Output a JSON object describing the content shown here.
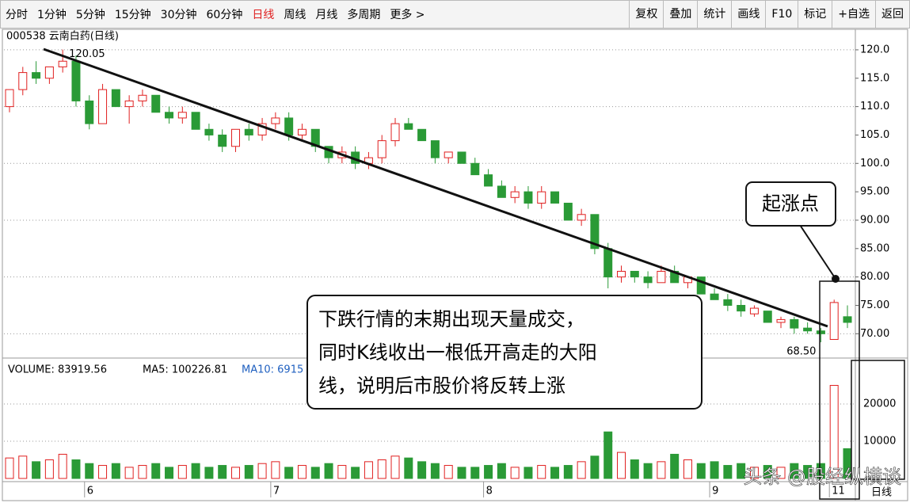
{
  "toolbar": {
    "periods": [
      "分时",
      "1分钟",
      "5分钟",
      "15分钟",
      "30分钟",
      "60分钟",
      "日线",
      "周线",
      "月线",
      "多周期",
      "更多 >"
    ],
    "tools": [
      "复权",
      "叠加",
      "统计",
      "画线",
      "F10",
      "标记",
      "+自选",
      "返回"
    ]
  },
  "chart_data": {
    "type": "candlestick",
    "title": "000538 云南白药(日线)",
    "categories": [
      null,
      null,
      null,
      null,
      null,
      null,
      "6",
      null,
      null,
      null,
      null,
      null,
      null,
      null,
      null,
      null,
      null,
      null,
      null,
      null,
      "7",
      null,
      null,
      null,
      null,
      null,
      null,
      null,
      null,
      null,
      null,
      null,
      null,
      null,
      null,
      null,
      "8",
      null,
      null,
      null,
      null,
      null,
      null,
      null,
      null,
      null,
      null,
      null,
      null,
      null,
      null,
      null,
      null,
      "9",
      null,
      null,
      null,
      null,
      null,
      null,
      null,
      null,
      "11",
      null
    ],
    "open": [
      110,
      113,
      116,
      115,
      117,
      118,
      111,
      107,
      113,
      110,
      111,
      112,
      109,
      108,
      109,
      106,
      105,
      103,
      106,
      105,
      107,
      108,
      105,
      106,
      103,
      101,
      102,
      100,
      101,
      104,
      107,
      106,
      104,
      101,
      102,
      100,
      98,
      96,
      94,
      95,
      93,
      95,
      93,
      90,
      91,
      85,
      80,
      81,
      80,
      79,
      81,
      79,
      80,
      77,
      76,
      75,
      73.5,
      74,
      72,
      72.5,
      71,
      70.5,
      69,
      73
    ],
    "high": [
      113,
      117,
      118,
      117,
      120.05,
      119,
      112,
      114,
      113,
      112,
      113,
      112,
      110,
      110,
      109,
      107,
      106,
      106,
      107,
      108,
      109,
      109,
      107,
      106,
      103,
      103,
      103,
      102,
      105,
      108,
      108,
      106,
      104,
      102,
      102,
      101,
      99,
      97,
      96,
      96,
      96,
      95,
      93,
      92,
      91,
      86,
      82,
      81,
      81,
      82,
      82,
      80,
      80,
      78,
      77,
      76,
      75,
      74,
      73,
      73,
      72,
      71,
      76,
      75
    ],
    "low": [
      109,
      112,
      114,
      114,
      116,
      110,
      106,
      107,
      110,
      107,
      110,
      109,
      107,
      107,
      106,
      104,
      102,
      102,
      104,
      104,
      106,
      104,
      104,
      102,
      100,
      100,
      99,
      99,
      100,
      103,
      106,
      104,
      100,
      100,
      100,
      98,
      96,
      94,
      93,
      92,
      92,
      93,
      90,
      89,
      84,
      78,
      79,
      79,
      78,
      79,
      79,
      78,
      77,
      76,
      74,
      73,
      73,
      72,
      71,
      70,
      70,
      68.5,
      69,
      71
    ],
    "close": [
      113,
      116,
      115,
      117,
      118,
      111,
      107,
      113,
      110,
      111,
      112,
      109,
      108,
      109,
      106,
      105,
      103,
      106,
      105,
      107,
      108,
      105,
      106,
      103,
      101,
      102,
      100,
      101,
      104,
      107,
      106,
      104,
      101,
      102,
      100,
      98,
      96,
      94,
      95,
      93,
      95,
      93,
      90,
      91,
      85,
      80,
      81,
      80,
      79,
      81,
      79,
      80,
      77,
      76,
      75,
      74,
      74.5,
      72,
      72.5,
      71,
      70.5,
      70,
      75.5,
      72
    ],
    "up_color": "#e02020",
    "down_color": "#2a9a36",
    "ylim": [
      66,
      122.5
    ],
    "yticks": [
      {
        "value": 120,
        "label": "120.0"
      },
      {
        "value": 115,
        "label": "115.0"
      },
      {
        "value": 110,
        "label": "110.0"
      },
      {
        "value": 105,
        "label": "105.0"
      },
      {
        "value": 100,
        "label": "100.0"
      },
      {
        "value": 95,
        "label": "95.00"
      },
      {
        "value": 90,
        "label": "90.00"
      },
      {
        "value": 85,
        "label": "85.00"
      },
      {
        "value": 80,
        "label": "80.00"
      },
      {
        "value": 75,
        "label": "75.00"
      },
      {
        "value": 70,
        "label": "70.00"
      }
    ],
    "annotations": [
      "120.05",
      "68.50"
    ],
    "volume": {
      "label": "VOLUME: 83919.56",
      "ma5": "MA5: 100226.81",
      "ma10": "MA10: 6915",
      "values": [
        5500,
        6000,
        4500,
        5000,
        6500,
        5000,
        4000,
        3500,
        4000,
        3000,
        3500,
        4000,
        3000,
        3500,
        4000,
        3000,
        3500,
        3000,
        3500,
        4000,
        4500,
        3000,
        3500,
        3000,
        4000,
        3500,
        3000,
        4500,
        5000,
        6000,
        5500,
        4500,
        4000,
        3500,
        3000,
        3000,
        3500,
        4000,
        3000,
        3000,
        3500,
        3000,
        3500,
        4500,
        6000,
        12500,
        7000,
        5000,
        4000,
        4500,
        6500,
        5000,
        4000,
        4500,
        3500,
        4000,
        3000,
        3500,
        3000,
        4000,
        3500,
        4000,
        25000,
        8000
      ],
      "ylim": [
        0,
        30000
      ],
      "yticks": [
        20000,
        10000
      ]
    },
    "period_label": "日线"
  },
  "callouts": {
    "point": "起涨点",
    "text": [
      "下跌行情的末期出现天量成交，",
      "同时K线收出一根低开高走的大阳",
      "线，说明后市股价将反转上涨"
    ]
  },
  "watermark": "头条 @股经纵横谈"
}
